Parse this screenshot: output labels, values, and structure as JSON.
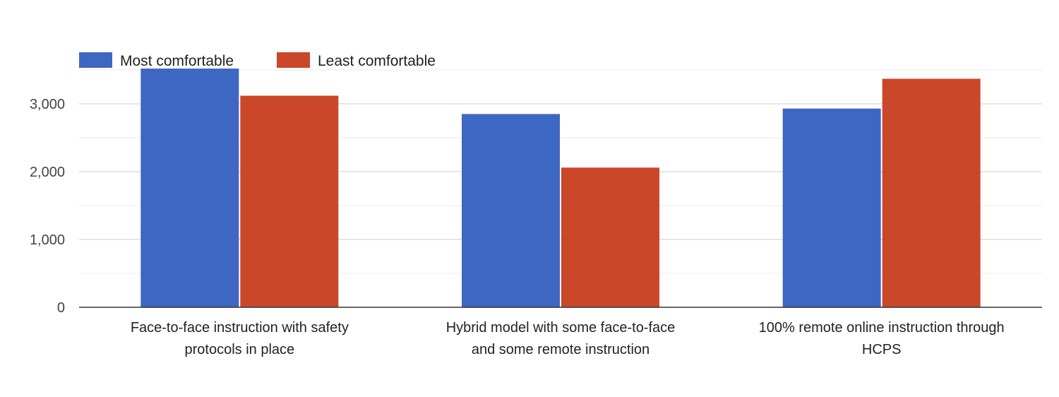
{
  "chart_data": {
    "type": "bar",
    "categories": [
      [
        "Face-to-face instruction with safety",
        "protocols in place"
      ],
      [
        "Hybrid model with some face-to-face",
        "and some remote instruction"
      ],
      [
        "100% remote online instruction through",
        "HCPS"
      ]
    ],
    "series": [
      {
        "name": "Most comfortable",
        "color": "#3e66c3",
        "values": [
          3520,
          2850,
          2930
        ]
      },
      {
        "name": "Least comfortable",
        "color": "#cb4729",
        "values": [
          3120,
          2060,
          3370
        ]
      }
    ],
    "ylim": [
      0,
      3500
    ],
    "yticks": [
      0,
      1000,
      2000,
      3000
    ],
    "ytick_labels": [
      "0",
      "1,000",
      "2,000",
      "3,000"
    ],
    "minor_gridlines": true,
    "legend_position": "top-left"
  }
}
